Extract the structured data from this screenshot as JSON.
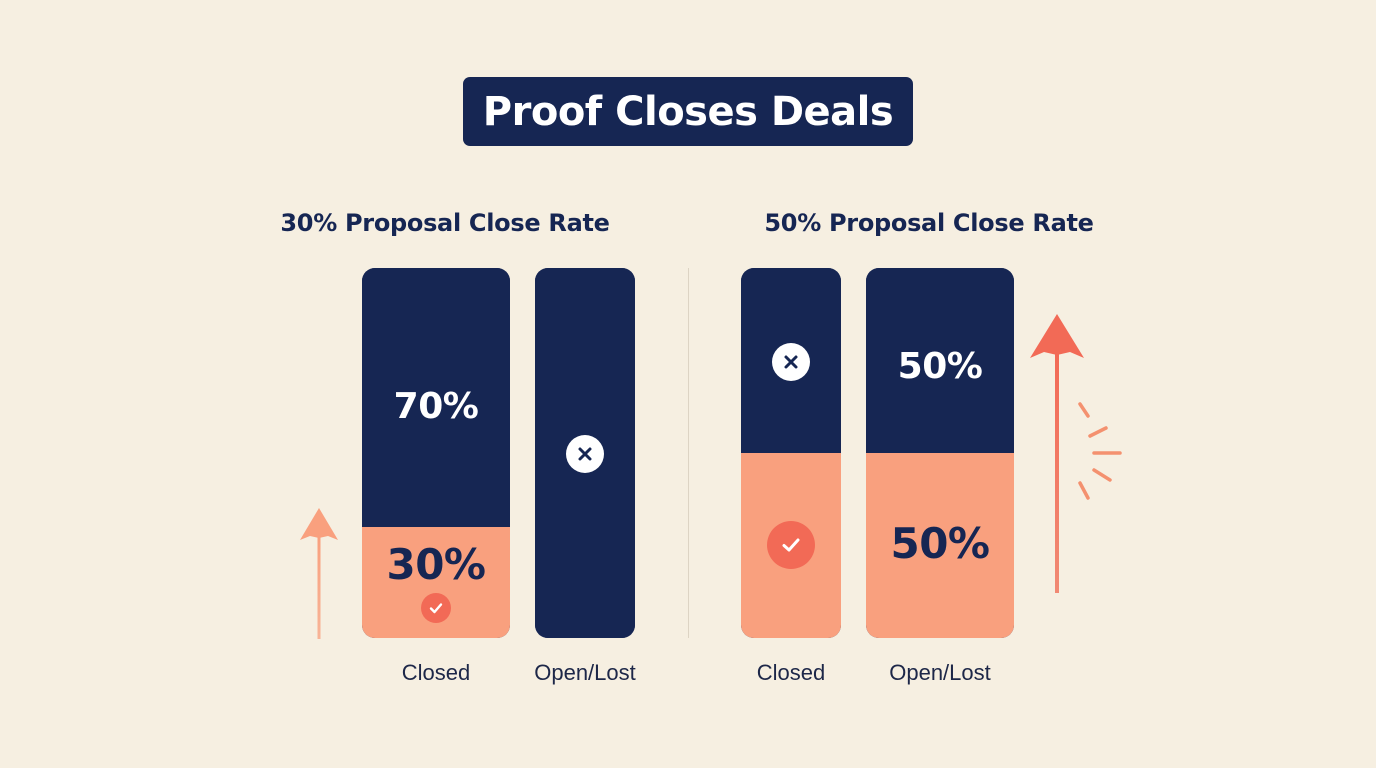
{
  "title": "Proof Closes Deals",
  "colors": {
    "background": "#f6efe1",
    "navy": "#162653",
    "salmon": "#f9a07e",
    "coral": "#f26a56",
    "white": "#ffffff"
  },
  "chart_data": [
    {
      "type": "bar",
      "stacked": true,
      "title": "30% Proposal Close Rate",
      "categories": [
        "Closed",
        "Open/Lost"
      ],
      "series": [
        {
          "values": [
            30,
            0
          ],
          "color": "#f9a07e"
        },
        {
          "values": [
            70,
            100
          ],
          "color": "#162653"
        }
      ],
      "data_labels": [
        {
          "category": "Closed",
          "top": "70%",
          "bottom": "30%"
        },
        {
          "category": "Open/Lost",
          "top": "",
          "bottom": ""
        }
      ],
      "icons": [
        {
          "category": "Closed",
          "name": "check-icon",
          "segment": "bottom"
        },
        {
          "category": "Open/Lost",
          "name": "x-icon",
          "segment": "top"
        }
      ],
      "annotation_icon": "up-arrow-icon",
      "ylim": [
        0,
        100
      ]
    },
    {
      "type": "bar",
      "stacked": true,
      "title": "50% Proposal Close Rate",
      "categories": [
        "Closed",
        "Open/Lost"
      ],
      "series": [
        {
          "values": [
            50,
            50
          ],
          "color": "#f9a07e"
        },
        {
          "values": [
            50,
            50
          ],
          "color": "#162653"
        }
      ],
      "data_labels": [
        {
          "category": "Closed",
          "top": "",
          "bottom": ""
        },
        {
          "category": "Open/Lost",
          "top": "50%",
          "bottom": "50%"
        }
      ],
      "icons": [
        {
          "category": "Closed",
          "name": "x-icon",
          "segment": "top"
        },
        {
          "category": "Closed",
          "name": "check-icon",
          "segment": "bottom"
        }
      ],
      "annotation_icon": "up-arrow-burst-icon",
      "ylim": [
        0,
        100
      ]
    }
  ]
}
